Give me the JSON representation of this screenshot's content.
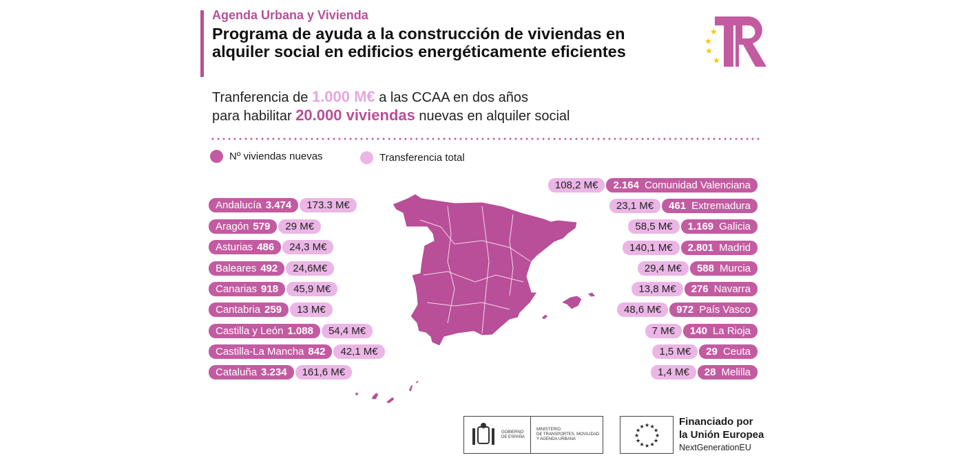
{
  "header": {
    "kicker": "Agenda Urbana y Vivienda",
    "title": "Programa de ayuda a la construcción de viviendas en alquiler social en edificios energéticamente eficientes",
    "line1_a": "Tranferencia de ",
    "line1_b": "1.000 M€",
    "line1_c": " a las CCAA en dos años",
    "line2_a": "para habilitar ",
    "line2_b": "20.000 viviendas",
    "line2_c": " nuevas en alquiler social"
  },
  "logo": {
    "text": "TR",
    "name": "plan-recuperacion-logo"
  },
  "legend": [
    {
      "label": "Nº viviendas nuevas",
      "color": "#c35ba1"
    },
    {
      "label": "Transferencia total",
      "color": "#ebb6e6"
    }
  ],
  "colors": {
    "dark": "#c35ba1",
    "light": "#ebb6e6",
    "map": "#b84f98"
  },
  "regions_left": [
    {
      "name": "Andalucía",
      "homes": "3.474",
      "amount": "173.3 M€"
    },
    {
      "name": "Aragón",
      "homes": "579",
      "amount": "29 M€"
    },
    {
      "name": "Asturias",
      "homes": "486",
      "amount": "24,3 M€"
    },
    {
      "name": "Baleares",
      "homes": "492",
      "amount": "24,6M€"
    },
    {
      "name": "Canarias",
      "homes": "918",
      "amount": "45,9 M€"
    },
    {
      "name": "Cantabria",
      "homes": "259",
      "amount": "13 M€"
    },
    {
      "name": "Castilla y León",
      "homes": "1.088",
      "amount": "54,4 M€"
    },
    {
      "name": "Castilla-La Mancha",
      "homes": "842",
      "amount": "42,1 M€"
    },
    {
      "name": "Cataluña",
      "homes": "3.234",
      "amount": "161,6 M€"
    }
  ],
  "regions_right": [
    {
      "name": "Comunidad Valenciana",
      "homes": "2.164",
      "amount": "108,2 M€"
    },
    {
      "name": "Extremadura",
      "homes": "461",
      "amount": "23,1 M€"
    },
    {
      "name": "Galicia",
      "homes": "1.169",
      "amount": "58,5 M€"
    },
    {
      "name": "Madrid",
      "homes": "2.801",
      "amount": "140,1 M€"
    },
    {
      "name": "Murcia",
      "homes": "588",
      "amount": "29,4 M€"
    },
    {
      "name": "Navarra",
      "homes": "276",
      "amount": "13,8 M€"
    },
    {
      "name": "País Vasco",
      "homes": "972",
      "amount": "48,6 M€"
    },
    {
      "name": "La Rioja",
      "homes": "140",
      "amount": "7 M€"
    },
    {
      "name": "Ceuta",
      "homes": "29",
      "amount": "1,5 M€"
    },
    {
      "name": "Melilla",
      "homes": "28",
      "amount": "1,4 M€"
    }
  ],
  "footer": {
    "gov_1": "GOBIERNO",
    "gov_2": "DE ESPAÑA",
    "min_1": "MINISTERIO",
    "min_2": "DE TRANSPORTES, MOVILIDAD",
    "min_3": "Y AGENDA URBANA",
    "eu_1": "Financiado por",
    "eu_2": "la Unión Europea",
    "eu_3": "NextGenerationEU"
  }
}
